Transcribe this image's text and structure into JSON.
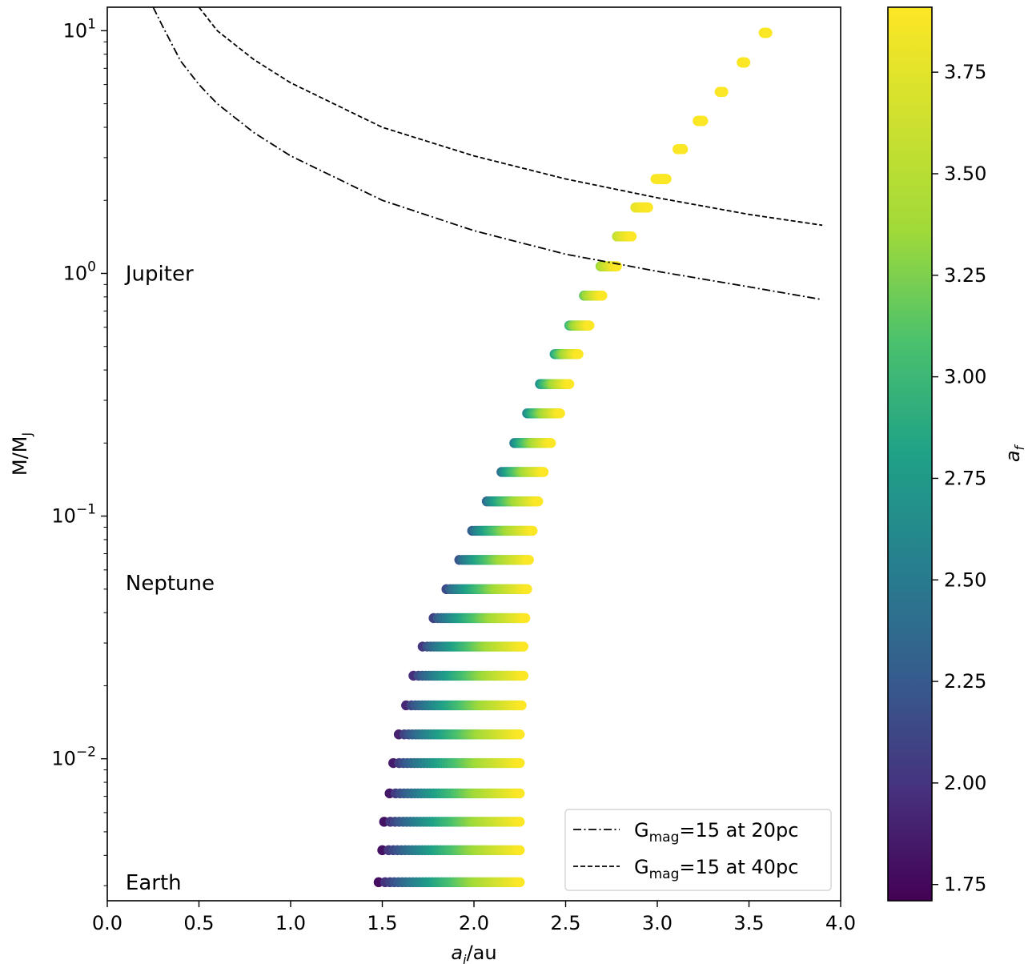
{
  "chart_data": {
    "type": "scatter",
    "xlabel": "a_i/au",
    "ylabel": "M/M_J",
    "colorbar_label": "a_f",
    "xlim": [
      0.0,
      4.0
    ],
    "ylim": [
      0.0026,
      12.5
    ],
    "yscale": "log",
    "x_ticks": [
      "0.0",
      "0.5",
      "1.0",
      "1.5",
      "2.0",
      "2.5",
      "3.0",
      "3.5",
      "4.0"
    ],
    "y_ticks": [
      {
        "base": "10",
        "exp": "1",
        "value": 10
      },
      {
        "base": "10",
        "exp": "0",
        "value": 1
      },
      {
        "base": "10",
        "exp": "−1",
        "value": 0.1
      },
      {
        "base": "10",
        "exp": "−2",
        "value": 0.01
      }
    ],
    "colorbar": {
      "range": [
        1.71,
        3.91
      ],
      "ticks": [
        "1.75",
        "2.00",
        "2.25",
        "2.50",
        "2.75",
        "3.00",
        "3.25",
        "3.50",
        "3.75"
      ],
      "colormap": "viridis"
    },
    "annotations": [
      {
        "text": "Jupiter",
        "x": 0.1,
        "y": 1.0
      },
      {
        "text": "Neptune",
        "x": 0.1,
        "y": 0.053
      },
      {
        "text": "Earth",
        "x": 0.1,
        "y": 0.0031
      }
    ],
    "legend": {
      "placement": "lower-right",
      "entries": [
        {
          "base": "G",
          "sub": "mag",
          "rest": "=15 at 20pc",
          "style": "dashdot"
        },
        {
          "base": "G",
          "sub": "mag",
          "rest": "=15 at 40pc",
          "style": "dashed"
        }
      ]
    },
    "series": [
      {
        "mass": 9.8,
        "ai_start": 3.58,
        "ai_end": 3.6
      },
      {
        "mass": 7.4,
        "ai_start": 3.46,
        "ai_end": 3.48
      },
      {
        "mass": 5.6,
        "ai_start": 3.34,
        "ai_end": 3.36
      },
      {
        "mass": 4.25,
        "ai_start": 3.22,
        "ai_end": 3.25
      },
      {
        "mass": 3.25,
        "ai_start": 3.11,
        "ai_end": 3.14
      },
      {
        "mass": 2.45,
        "ai_start": 2.99,
        "ai_end": 3.05
      },
      {
        "mass": 1.87,
        "ai_start": 2.88,
        "ai_end": 2.95
      },
      {
        "mass": 1.42,
        "ai_start": 2.78,
        "ai_end": 2.86
      },
      {
        "mass": 1.07,
        "ai_start": 2.69,
        "ai_end": 2.78
      },
      {
        "mass": 0.81,
        "ai_start": 2.6,
        "ai_end": 2.7
      },
      {
        "mass": 0.61,
        "ai_start": 2.52,
        "ai_end": 2.63
      },
      {
        "mass": 0.465,
        "ai_start": 2.44,
        "ai_end": 2.57
      },
      {
        "mass": 0.35,
        "ai_start": 2.36,
        "ai_end": 2.52
      },
      {
        "mass": 0.265,
        "ai_start": 2.29,
        "ai_end": 2.47
      },
      {
        "mass": 0.2,
        "ai_start": 2.22,
        "ai_end": 2.42
      },
      {
        "mass": 0.152,
        "ai_start": 2.15,
        "ai_end": 2.38
      },
      {
        "mass": 0.115,
        "ai_start": 2.07,
        "ai_end": 2.35
      },
      {
        "mass": 0.087,
        "ai_start": 1.99,
        "ai_end": 2.32
      },
      {
        "mass": 0.066,
        "ai_start": 1.92,
        "ai_end": 2.3
      },
      {
        "mass": 0.05,
        "ai_start": 1.85,
        "ai_end": 2.29
      },
      {
        "mass": 0.038,
        "ai_start": 1.78,
        "ai_end": 2.28
      },
      {
        "mass": 0.029,
        "ai_start": 1.72,
        "ai_end": 2.27
      },
      {
        "mass": 0.022,
        "ai_start": 1.67,
        "ai_end": 2.27
      },
      {
        "mass": 0.0166,
        "ai_start": 1.63,
        "ai_end": 2.26
      },
      {
        "mass": 0.0126,
        "ai_start": 1.59,
        "ai_end": 2.25
      },
      {
        "mass": 0.0096,
        "ai_start": 1.56,
        "ai_end": 2.25
      },
      {
        "mass": 0.0072,
        "ai_start": 1.54,
        "ai_end": 2.25
      },
      {
        "mass": 0.0055,
        "ai_start": 1.51,
        "ai_end": 2.25
      },
      {
        "mass": 0.0042,
        "ai_start": 1.5,
        "ai_end": 2.25
      },
      {
        "mass": 0.0031,
        "ai_start": 1.48,
        "ai_end": 2.25
      }
    ],
    "curves": [
      {
        "name": "G_mag=15 at 20pc",
        "style": "dashdot",
        "x": [
          0.25,
          0.3,
          0.4,
          0.5,
          0.6,
          0.8,
          1.0,
          1.5,
          2.0,
          2.5,
          3.0,
          3.5,
          3.9
        ],
        "y": [
          12.5,
          10.5,
          7.5,
          6.0,
          5.0,
          3.8,
          3.05,
          2.0,
          1.5,
          1.2,
          1.02,
          0.88,
          0.78
        ]
      },
      {
        "name": "G_mag=15 at 40pc",
        "style": "dashed",
        "x": [
          0.5,
          0.6,
          0.8,
          1.0,
          1.5,
          2.0,
          2.5,
          3.0,
          3.5,
          3.9
        ],
        "y": [
          12.5,
          10.0,
          7.6,
          6.1,
          4.0,
          3.05,
          2.45,
          2.05,
          1.75,
          1.58
        ]
      }
    ]
  }
}
